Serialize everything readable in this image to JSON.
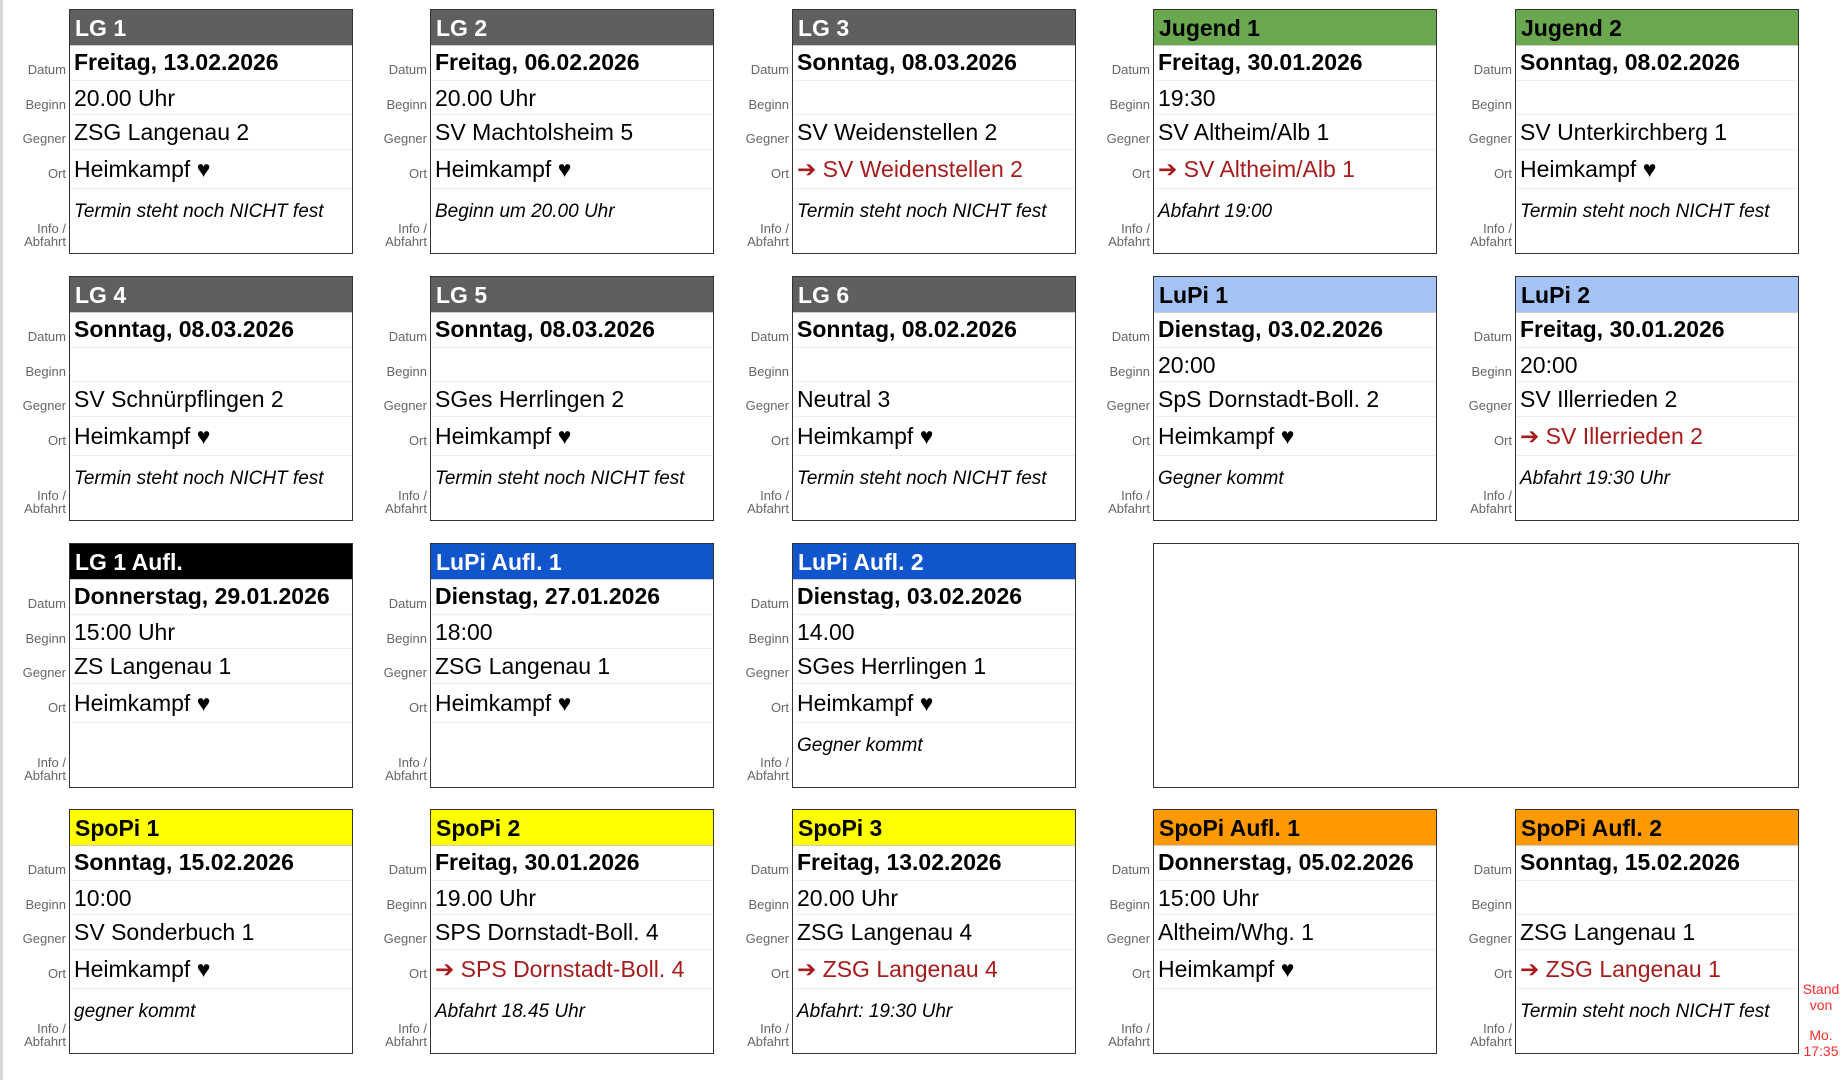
{
  "labels": {
    "datum": "Datum",
    "beginn": "Beginn",
    "gegner": "Gegner",
    "ort": "Ort",
    "info": "Info /",
    "abfahrt": "Abfahrt"
  },
  "colors": {
    "gray": "#5f5f5f",
    "green": "#6aa84f",
    "lightblue": "#a4c2f4",
    "blue": "#1155cc",
    "black": "#000000",
    "yellow": "#ffff00",
    "orange": "#ff9900",
    "away_text": "#a61c1c"
  },
  "cards": [
    {
      "team": "LG 1",
      "header_bg": "#5f5f5f",
      "header_fg": "#ffffff",
      "datum": "Freitag, 13.02.2026",
      "beginn": "20.00 Uhr",
      "gegner": "ZSG Langenau 2",
      "ort": "Heimkampf ♥",
      "away": false,
      "info": "Termin steht noch NICHT fest"
    },
    {
      "team": "LG 2",
      "header_bg": "#5f5f5f",
      "header_fg": "#ffffff",
      "datum": "Freitag, 06.02.2026",
      "beginn": "20.00 Uhr",
      "gegner": "SV Machtolsheim 5",
      "ort": "Heimkampf ♥",
      "away": false,
      "info": "Beginn um 20.00 Uhr"
    },
    {
      "team": "LG 3",
      "header_bg": "#5f5f5f",
      "header_fg": "#ffffff",
      "datum": "Sonntag, 08.03.2026",
      "beginn": "",
      "gegner": "SV Weidenstellen 2",
      "ort": "➔ SV Weidenstellen 2",
      "away": true,
      "info": "Termin steht noch NICHT fest"
    },
    {
      "team": "Jugend 1",
      "header_bg": "#6aa84f",
      "header_fg": "#000000",
      "datum": "Freitag, 30.01.2026",
      "beginn": "19:30",
      "gegner": "SV Altheim/Alb 1",
      "ort": "➔ SV Altheim/Alb 1",
      "away": true,
      "info": "Abfahrt 19:00"
    },
    {
      "team": "Jugend 2",
      "header_bg": "#6aa84f",
      "header_fg": "#000000",
      "datum": "Sonntag, 08.02.2026",
      "beginn": "",
      "gegner": "SV Unterkirchberg 1",
      "ort": "Heimkampf ♥",
      "away": false,
      "info": "Termin steht noch NICHT fest"
    },
    {
      "team": "LG 4",
      "header_bg": "#5f5f5f",
      "header_fg": "#ffffff",
      "datum": "Sonntag, 08.03.2026",
      "beginn": "",
      "gegner": "SV Schnürpflingen 2",
      "ort": "Heimkampf ♥",
      "away": false,
      "info": "Termin steht noch NICHT fest"
    },
    {
      "team": "LG 5",
      "header_bg": "#5f5f5f",
      "header_fg": "#ffffff",
      "datum": "Sonntag, 08.03.2026",
      "beginn": "",
      "gegner": "SGes Herrlingen 2",
      "ort": "Heimkampf ♥",
      "away": false,
      "info": "Termin steht noch NICHT fest"
    },
    {
      "team": "LG 6",
      "header_bg": "#5f5f5f",
      "header_fg": "#ffffff",
      "datum": "Sonntag, 08.02.2026",
      "beginn": "",
      "gegner": "Neutral 3",
      "ort": "Heimkampf ♥",
      "away": false,
      "info": "Termin steht noch NICHT fest"
    },
    {
      "team": "LuPi 1",
      "header_bg": "#a4c2f4",
      "header_fg": "#000000",
      "datum": "Dienstag, 03.02.2026",
      "beginn": "20:00",
      "gegner": "SpS Dornstadt-Boll. 2",
      "ort": "Heimkampf ♥",
      "away": false,
      "info": "Gegner kommt"
    },
    {
      "team": "LuPi 2",
      "header_bg": "#a4c2f4",
      "header_fg": "#000000",
      "datum": "Freitag, 30.01.2026",
      "beginn": "20:00",
      "gegner": "SV Illerrieden 2",
      "ort": "➔ SV Illerrieden 2",
      "away": true,
      "info": "Abfahrt 19:30 Uhr"
    },
    {
      "team": "LG 1 Aufl.",
      "header_bg": "#000000",
      "header_fg": "#ffffff",
      "datum": "Donnerstag, 29.01.2026",
      "beginn": "15:00 Uhr",
      "gegner": "ZS Langenau 1",
      "ort": "Heimkampf ♥",
      "away": false,
      "info": ""
    },
    {
      "team": "LuPi Aufl. 1",
      "header_bg": "#1155cc",
      "header_fg": "#ffffff",
      "datum": "Dienstag, 27.01.2026",
      "beginn": "18:00",
      "gegner": "ZSG Langenau 1",
      "ort": "Heimkampf ♥",
      "away": false,
      "info": ""
    },
    {
      "team": "LuPi Aufl. 2",
      "header_bg": "#1155cc",
      "header_fg": "#ffffff",
      "datum": "Dienstag, 03.02.2026",
      "beginn": "14.00",
      "gegner": "SGes Herrlingen 1",
      "ort": "Heimkampf ♥",
      "away": false,
      "info": "Gegner kommt"
    },
    {
      "team": "SpoPi 1",
      "header_bg": "#ffff00",
      "header_fg": "#000000",
      "datum": "Sonntag, 15.02.2026",
      "beginn": "10:00",
      "gegner": "SV Sonderbuch 1",
      "ort": "Heimkampf ♥",
      "away": false,
      "info": "gegner kommt"
    },
    {
      "team": "SpoPi 2",
      "header_bg": "#ffff00",
      "header_fg": "#000000",
      "datum": "Freitag, 30.01.2026",
      "beginn": "19.00 Uhr",
      "gegner": "SPS Dornstadt-Boll. 4",
      "ort": "➔ SPS Dornstadt-Boll. 4",
      "away": true,
      "info": "Abfahrt 18.45 Uhr"
    },
    {
      "team": "SpoPi 3",
      "header_bg": "#ffff00",
      "header_fg": "#000000",
      "datum": "Freitag, 13.02.2026",
      "beginn": "20.00 Uhr",
      "gegner": "ZSG Langenau 4",
      "ort": "➔ ZSG Langenau 4",
      "away": true,
      "info": "Abfahrt: 19:30 Uhr"
    },
    {
      "team": "SpoPi Aufl. 1",
      "header_bg": "#ff9900",
      "header_fg": "#000000",
      "datum": "Donnerstag, 05.02.2026",
      "beginn": "15:00 Uhr",
      "gegner": "Altheim/Whg. 1",
      "ort": "Heimkampf ♥",
      "away": false,
      "info": ""
    },
    {
      "team": "SpoPi Aufl. 2",
      "header_bg": "#ff9900",
      "header_fg": "#000000",
      "datum": "Sonntag, 15.02.2026",
      "beginn": "",
      "gegner": "ZSG Langenau 1",
      "ort": "➔ ZSG Langenau 1",
      "away": true,
      "info": "Termin steht noch NICHT fest"
    }
  ],
  "stand": {
    "line1": "Stand",
    "line2": "von",
    "line3": "Mo.",
    "line4": "17:35"
  }
}
